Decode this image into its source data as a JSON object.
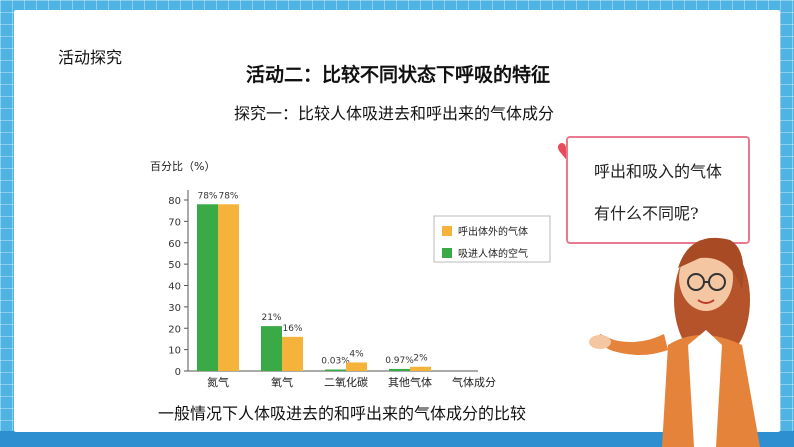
{
  "page": {
    "corner_tag": "活动探究",
    "title": "活动二：比较不同状态下呼吸的特征",
    "subtitle": "探究一：比较人体吸进去和呼出来的气体成分",
    "caption": "一般情况下人体吸进去的和呼出来的气体成分的比较"
  },
  "bubble": {
    "line1": "呼出和吸入的气体",
    "line2": "有什么不同呢?"
  },
  "colors": {
    "inhaled": "#3aaa46",
    "exhaled": "#f5b33c",
    "frame": "#4fb3e3"
  },
  "chart_data": {
    "type": "bar",
    "ylabel": "百分比（%）",
    "xlabel": "气体成分",
    "categories": [
      "氮气",
      "氧气",
      "二氧化碳",
      "其他气体"
    ],
    "ylim": [
      0,
      80
    ],
    "yticks": [
      0,
      10,
      20,
      30,
      40,
      50,
      60,
      70,
      80
    ],
    "series": [
      {
        "name": "吸进人体的空气",
        "values": [
          78,
          21,
          0.03,
          0.97
        ],
        "labels": [
          "78%",
          "21%",
          "0.03%",
          "0.97%"
        ],
        "color": "#3aaa46"
      },
      {
        "name": "呼出体外的气体",
        "values": [
          78,
          16,
          4,
          2
        ],
        "labels": [
          "78%",
          "16%",
          "4%",
          "2%"
        ],
        "color": "#f5b33c"
      }
    ],
    "legend_position": "right",
    "legend_order": [
      "呼出体外的气体",
      "吸进人体的空气"
    ],
    "grid": false
  }
}
